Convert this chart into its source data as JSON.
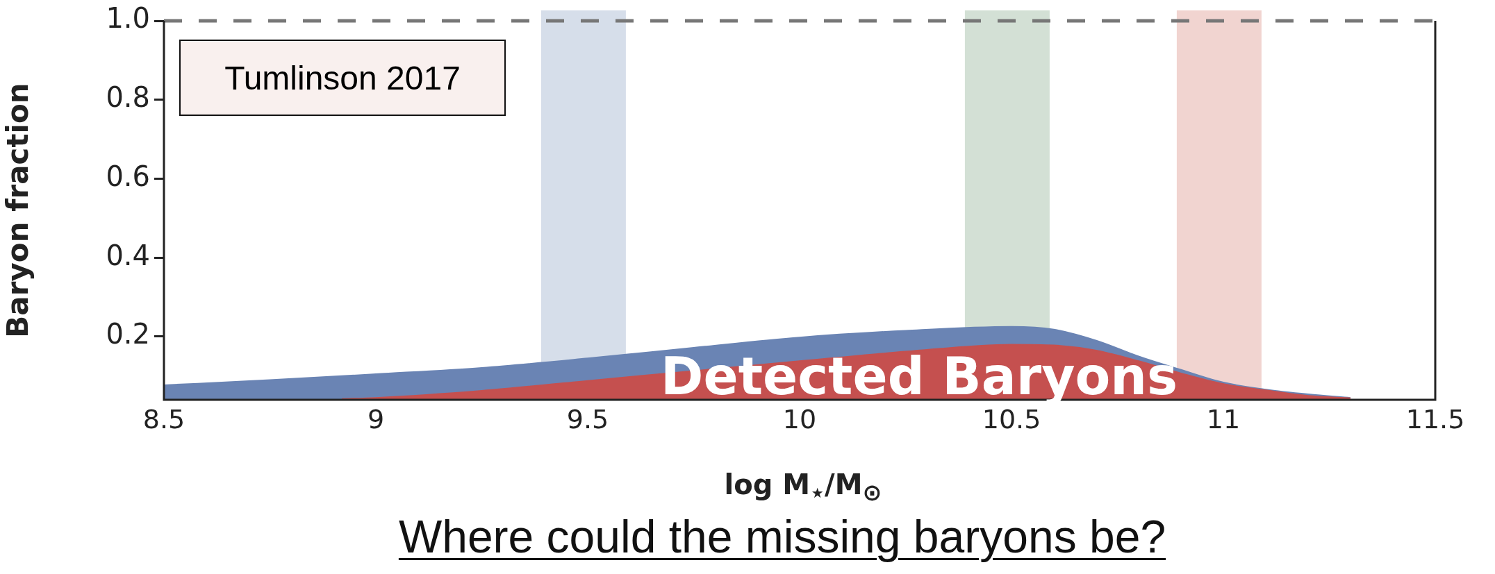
{
  "chart_data": {
    "type": "area",
    "xlabel": "log M$_{⋆}$/M$_{⊙}$",
    "ylabel": "Baryon fraction",
    "annotations": [
      "Tumlinson 2017",
      "Where could the missing baryons be?"
    ],
    "xlim": [
      8.5,
      11.5
    ],
    "xticks": [
      8.5,
      9,
      9.5,
      10,
      10.5,
      11,
      11.5
    ],
    "ylim": [
      0.04,
      1.0
    ],
    "yticks": [
      0.2,
      0.4,
      0.6,
      0.8,
      {
        "value": 1.0,
        "label": "1.0"
      }
    ],
    "grid": false,
    "legend": false,
    "series": [
      {
        "color": "#6a84b4",
        "x": [
          8.5,
          8.75,
          9.0,
          9.25,
          9.5,
          9.75,
          10.0,
          10.25,
          10.5,
          10.6,
          10.7,
          10.8,
          10.9,
          11.0,
          11.1,
          11.2,
          11.3
        ],
        "values": [
          0.077,
          0.09,
          0.105,
          0.121,
          0.145,
          0.172,
          0.198,
          0.215,
          0.225,
          0.218,
          0.19,
          0.15,
          0.116,
          0.084,
          0.066,
          0.054,
          0.045
        ]
      },
      {
        "name": "Detected Baryons",
        "color": "#c5504f",
        "x": [
          8.92,
          9.0,
          9.25,
          9.5,
          9.75,
          10.0,
          10.25,
          10.5,
          10.6,
          10.7,
          10.8,
          10.9,
          11.0,
          11.1,
          11.2,
          11.3
        ],
        "values": [
          0.042,
          0.045,
          0.063,
          0.088,
          0.113,
          0.138,
          0.162,
          0.18,
          0.178,
          0.165,
          0.138,
          0.107,
          0.08,
          0.064,
          0.05,
          0.044
        ]
      }
    ],
    "ref_lines": [
      {
        "axis": "y",
        "value": 1.0,
        "color": "#777777",
        "line_style": "dashed"
      }
    ],
    "bands": [
      {
        "axis": "x",
        "from": 9.39,
        "to": 9.59,
        "color": "#d6deea"
      },
      {
        "axis": "x",
        "from": 10.39,
        "to": 10.59,
        "color": "#d3e0d5"
      },
      {
        "axis": "x",
        "from": 10.89,
        "to": 11.09,
        "color": "#f1d4d0"
      }
    ]
  }
}
